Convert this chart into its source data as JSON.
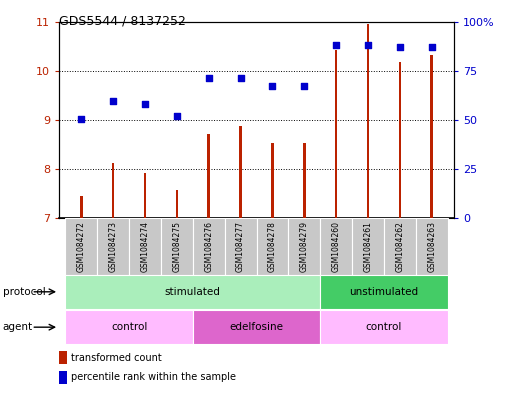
{
  "title": "GDS5544 / 8137252",
  "samples": [
    "GSM1084272",
    "GSM1084273",
    "GSM1084274",
    "GSM1084275",
    "GSM1084276",
    "GSM1084277",
    "GSM1084278",
    "GSM1084279",
    "GSM1084260",
    "GSM1084261",
    "GSM1084262",
    "GSM1084263"
  ],
  "bar_values": [
    7.45,
    8.12,
    7.92,
    7.58,
    8.72,
    8.88,
    8.52,
    8.52,
    10.42,
    10.95,
    10.18,
    10.32
  ],
  "scatter_values": [
    9.02,
    9.38,
    9.32,
    9.08,
    9.85,
    9.85,
    9.68,
    9.68,
    10.52,
    10.52,
    10.48,
    10.48
  ],
  "ylim_left": [
    7,
    11
  ],
  "ylim_right": [
    0,
    100
  ],
  "yticks_left": [
    7,
    8,
    9,
    10,
    11
  ],
  "yticks_right": [
    0,
    25,
    50,
    75,
    100
  ],
  "yticklabels_right": [
    "0",
    "25",
    "50",
    "75",
    "100%"
  ],
  "bar_color": "#bb2200",
  "scatter_color": "#0000cc",
  "bar_bottom": 7,
  "protocol_groups": [
    {
      "label": "stimulated",
      "start": 0,
      "end": 8,
      "color": "#aaeebb"
    },
    {
      "label": "unstimulated",
      "start": 8,
      "end": 12,
      "color": "#44cc66"
    }
  ],
  "agent_groups": [
    {
      "label": "control",
      "start": 0,
      "end": 4,
      "color": "#ffbbff"
    },
    {
      "label": "edelfosine",
      "start": 4,
      "end": 8,
      "color": "#dd66cc"
    },
    {
      "label": "control",
      "start": 8,
      "end": 12,
      "color": "#ffbbff"
    }
  ],
  "legend_bar_label": "transformed count",
  "legend_scatter_label": "percentile rank within the sample",
  "tick_label_bg": "#c8c8c8",
  "protocol_label": "protocol",
  "agent_label": "agent",
  "bar_width": 0.08
}
